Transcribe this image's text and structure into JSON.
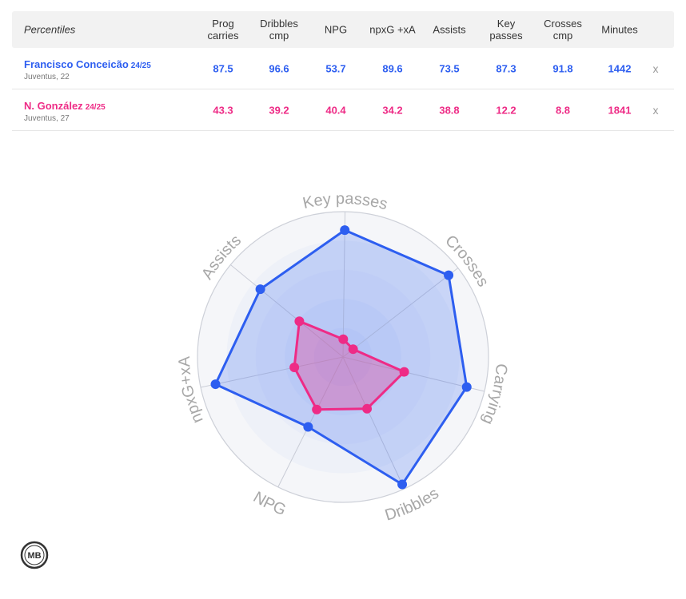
{
  "table": {
    "header": {
      "first": "Percentiles",
      "columns": [
        {
          "l1": "Prog",
          "l2": "carries"
        },
        {
          "l1": "Dribbles",
          "l2": "cmp"
        },
        {
          "l1": "NPG",
          "l2": ""
        },
        {
          "l1": "npxG +xA",
          "l2": ""
        },
        {
          "l1": "Assists",
          "l2": ""
        },
        {
          "l1": "Key",
          "l2": "passes"
        },
        {
          "l1": "Crosses",
          "l2": "cmp"
        },
        {
          "l1": "Minutes",
          "l2": ""
        }
      ]
    },
    "rows": [
      {
        "name": "Francisco Conceicão",
        "season": "24/25",
        "team": "Juventus, 22",
        "values": [
          "87.5",
          "96.6",
          "53.7",
          "89.6",
          "73.5",
          "87.3",
          "91.8",
          "1442"
        ],
        "remove": "x",
        "color": "#2d5ef0"
      },
      {
        "name": "N. González",
        "season": "24/25",
        "team": "Juventus, 27",
        "values": [
          "43.3",
          "39.2",
          "40.4",
          "34.2",
          "38.8",
          "12.2",
          "8.8",
          "1841"
        ],
        "remove": "x",
        "color": "#ee2b86"
      }
    ]
  },
  "chart_data": {
    "type": "radar",
    "axes": [
      "Key passes",
      "Crosses",
      "Carrying",
      "Dribbles",
      "NPG",
      "npxG+xA",
      "Assists"
    ],
    "range": [
      0,
      100
    ],
    "series": [
      {
        "name": "Francisco Conceicão",
        "color": "#2d5ef0",
        "values": [
          87.3,
          91.8,
          87.5,
          96.6,
          53.7,
          89.6,
          73.5
        ]
      },
      {
        "name": "N. González",
        "color": "#ee2b86",
        "values": [
          12.2,
          8.8,
          43.3,
          39.2,
          40.4,
          34.2,
          38.8
        ]
      }
    ]
  },
  "logo": {
    "text": "MB"
  }
}
